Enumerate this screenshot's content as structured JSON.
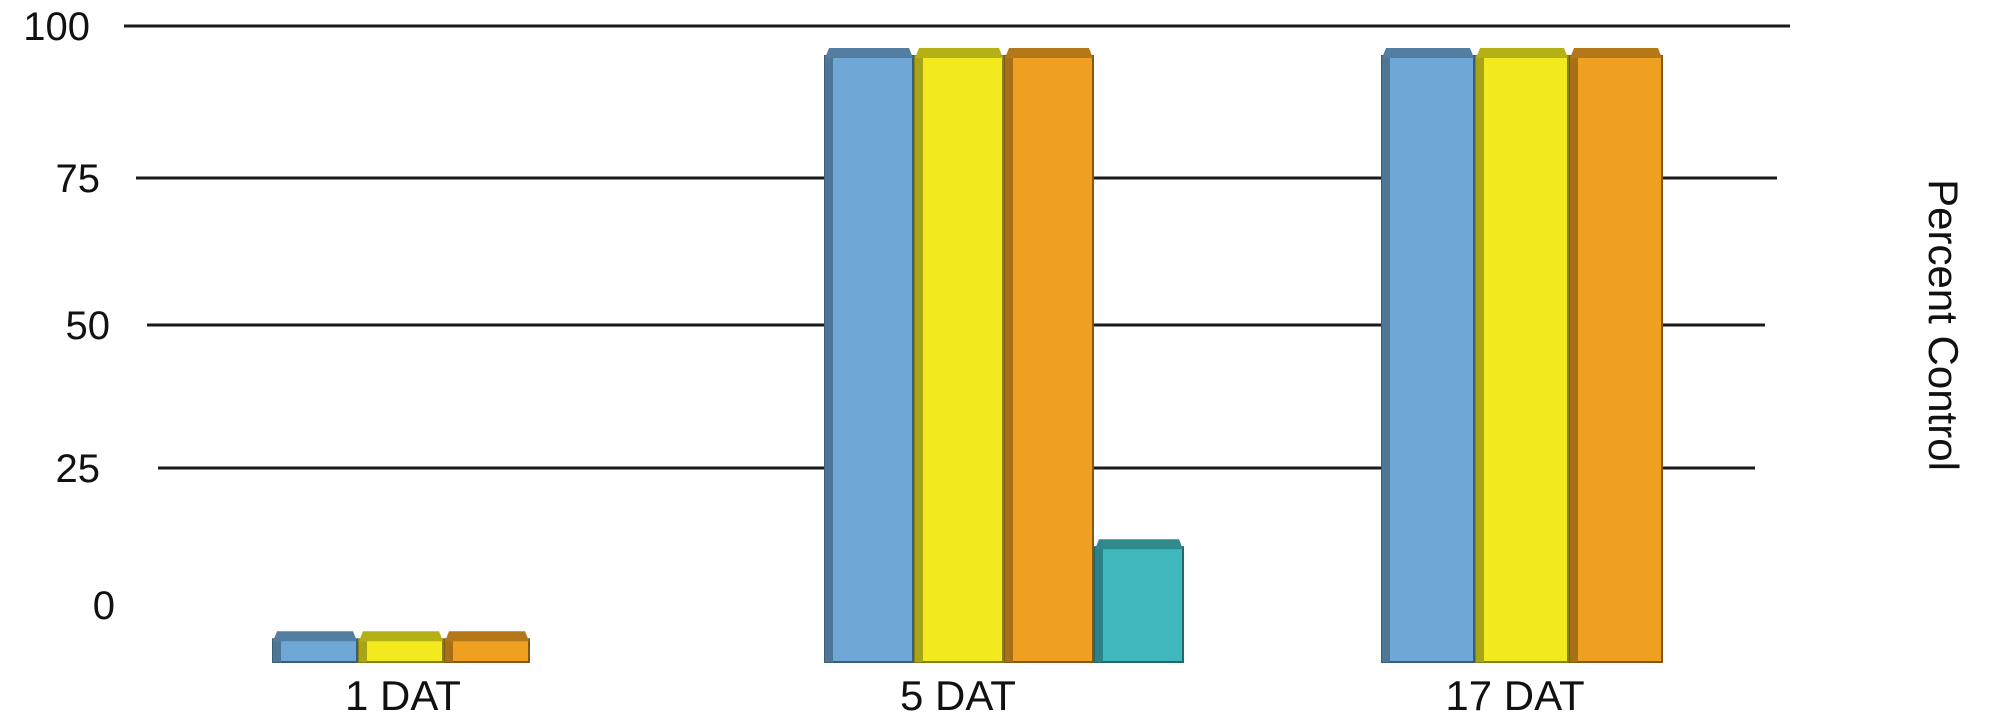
{
  "chart_data": {
    "type": "bar",
    "categories": [
      "1 DAT",
      "5 DAT",
      "17 DAT"
    ],
    "series": [
      {
        "color": "#6fa8d6",
        "values": [
          5,
          100,
          100
        ]
      },
      {
        "color": "#f2ea1f",
        "values": [
          5,
          100,
          100
        ]
      },
      {
        "color": "#f0a020",
        "values": [
          5,
          100,
          100
        ]
      },
      {
        "color": "#3fb8bd",
        "values": [
          null,
          20,
          null
        ]
      }
    ],
    "yticks": [
      0,
      25,
      50,
      75,
      100
    ],
    "ylabel": "Percent Control",
    "xlabel": "",
    "title": "",
    "ylim": [
      0,
      100
    ],
    "grid": true,
    "style": "3d-bar"
  }
}
